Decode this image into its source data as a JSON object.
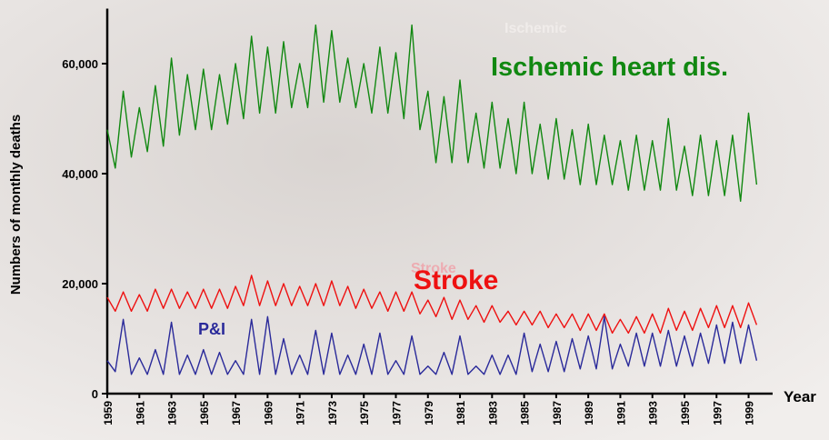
{
  "chart_data": {
    "type": "line",
    "y_label": "Numbers of monthly deaths",
    "x_label": "Year",
    "annotations": [
      "Ischemic",
      "Stroke"
    ],
    "x": [
      1959,
      1959.5,
      1960,
      1960.5,
      1961,
      1961.5,
      1962,
      1962.5,
      1963,
      1963.5,
      1964,
      1964.5,
      1965,
      1965.5,
      1966,
      1966.5,
      1967,
      1967.5,
      1968,
      1968.5,
      1969,
      1969.5,
      1970,
      1970.5,
      1971,
      1971.5,
      1972,
      1972.5,
      1973,
      1973.5,
      1974,
      1974.5,
      1975,
      1975.5,
      1976,
      1976.5,
      1977,
      1977.5,
      1978,
      1978.5,
      1979,
      1979.5,
      1980,
      1980.5,
      1981,
      1981.5,
      1982,
      1982.5,
      1983,
      1983.5,
      1984,
      1984.5,
      1985,
      1985.5,
      1986,
      1986.5,
      1987,
      1987.5,
      1988,
      1988.5,
      1989,
      1989.5,
      1990,
      1990.5,
      1991,
      1991.5,
      1992,
      1992.5,
      1993,
      1993.5,
      1994,
      1994.5,
      1995,
      1995.5,
      1996,
      1996.5,
      1997,
      1997.5,
      1998,
      1998.5,
      1999,
      1999.5
    ],
    "series": [
      {
        "name": "Ischemic heart dis.",
        "color": "#118811",
        "values": [
          48000,
          41000,
          55000,
          43000,
          52000,
          44000,
          56000,
          45000,
          61000,
          47000,
          58000,
          48000,
          59000,
          48000,
          58000,
          49000,
          60000,
          50000,
          65000,
          51000,
          63000,
          51000,
          64000,
          52000,
          60000,
          52000,
          67000,
          53000,
          66000,
          53000,
          61000,
          52000,
          60000,
          51000,
          63000,
          51000,
          62000,
          50000,
          67000,
          48000,
          55000,
          42000,
          54000,
          42000,
          57000,
          42000,
          51000,
          41000,
          53000,
          41000,
          50000,
          40000,
          53000,
          40000,
          49000,
          39000,
          50000,
          39000,
          48000,
          38000,
          49000,
          38000,
          47000,
          38000,
          46000,
          37000,
          47000,
          37000,
          46000,
          37000,
          50000,
          37000,
          45000,
          36000,
          47000,
          36000,
          46000,
          36000,
          47000,
          35000,
          51000,
          38000
        ]
      },
      {
        "name": "Stroke",
        "color": "#ee1111",
        "values": [
          17500,
          15000,
          18500,
          15000,
          18000,
          15000,
          19000,
          15500,
          19000,
          15500,
          18500,
          15500,
          19000,
          15500,
          19000,
          15500,
          19500,
          16000,
          21500,
          16000,
          20500,
          16000,
          20000,
          16000,
          19500,
          16000,
          20000,
          16000,
          20500,
          16000,
          19500,
          15500,
          19000,
          15500,
          18500,
          15000,
          18500,
          15000,
          18500,
          14500,
          17000,
          14000,
          17500,
          13500,
          17000,
          13500,
          16000,
          13000,
          16000,
          13000,
          15000,
          12500,
          15000,
          12500,
          15000,
          12000,
          14500,
          12000,
          14500,
          11500,
          14500,
          11500,
          14500,
          11000,
          13500,
          11000,
          14000,
          11000,
          14500,
          11000,
          15500,
          11500,
          15000,
          11500,
          15500,
          12000,
          16000,
          12000,
          16000,
          12000,
          16500,
          12500
        ]
      },
      {
        "name": "P&I",
        "color": "#2a2a9a",
        "values": [
          6000,
          4000,
          13500,
          3500,
          6500,
          3500,
          8000,
          3500,
          13000,
          3500,
          7000,
          3500,
          8000,
          3500,
          7500,
          3500,
          6000,
          3500,
          13500,
          3500,
          14000,
          3500,
          10000,
          3500,
          7000,
          3500,
          11500,
          3500,
          11000,
          3500,
          7000,
          3500,
          9000,
          3500,
          11000,
          3500,
          6000,
          3500,
          10500,
          3500,
          5000,
          3500,
          7500,
          3500,
          10500,
          3500,
          5000,
          3500,
          7000,
          3500,
          7000,
          3500,
          11000,
          4000,
          9000,
          4000,
          9500,
          4000,
          10000,
          4500,
          10500,
          4500,
          14000,
          4500,
          9000,
          5000,
          11000,
          5000,
          11000,
          5000,
          11500,
          5000,
          10500,
          5000,
          11000,
          5500,
          12500,
          5500,
          13000,
          5500,
          12500,
          6000
        ]
      }
    ],
    "xlim": [
      1959,
      2000.5
    ],
    "xticks": [
      1959,
      1961,
      1963,
      1965,
      1967,
      1969,
      1971,
      1973,
      1975,
      1977,
      1979,
      1981,
      1983,
      1985,
      1987,
      1989,
      1991,
      1993,
      1995,
      1997,
      1999
    ],
    "ylim": [
      0,
      70000
    ],
    "yticks": [
      0,
      {
        "value": 20000,
        "label": "20,000"
      },
      {
        "value": 40000,
        "label": "40,000"
      },
      {
        "value": 60000,
        "label": "60,000"
      }
    ]
  }
}
